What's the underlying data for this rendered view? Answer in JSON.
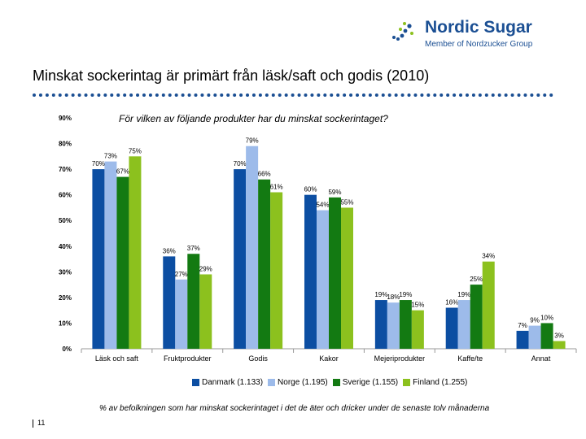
{
  "logo": {
    "name": "Nordic Sugar",
    "subtitle": "Member of Nordzucker Group"
  },
  "title": "Minskat sockerintag är primärt från läsk/saft och godis (2010)",
  "question": "För vilken av följande produkter har du minskat sockerintaget?",
  "footnote": "% av befolkningen som har minskat sockerintaget i det de äter och dricker under de senaste tolv månaderna",
  "page_number": "11",
  "colors": {
    "brand": "#1b4f93",
    "Danmark": "#0c4ea2",
    "Norge": "#9dbbea",
    "Sverige": "#137a12",
    "Finland": "#8cc11e"
  },
  "chart_data": {
    "type": "bar",
    "categories": [
      "Läsk och saft",
      "Fruktprodukter",
      "Godis",
      "Kakor",
      "Mejeriprodukter",
      "Kaffe/te",
      "Annat"
    ],
    "series": [
      {
        "name": "Danmark (1.133)",
        "values": [
          70,
          36,
          70,
          60,
          19,
          16,
          7
        ],
        "labels": [
          "70%",
          "36%",
          "70%",
          "60%",
          "19%",
          "16%",
          "7%"
        ]
      },
      {
        "name": "Norge (1.195)",
        "values": [
          73,
          27,
          79,
          54,
          18,
          19,
          9
        ],
        "labels": [
          "73%",
          "27%",
          "79%",
          "54%",
          "18%",
          "19%",
          "9%"
        ]
      },
      {
        "name": "Sverige (1.155)",
        "values": [
          67,
          37,
          66,
          59,
          19,
          25,
          10
        ],
        "labels": [
          "67%",
          "37%",
          "66%",
          "59%",
          "19%",
          "25%",
          "10%"
        ]
      },
      {
        "name": "Finland (1.255)",
        "values": [
          75,
          29,
          61,
          55,
          15,
          34,
          3
        ],
        "labels": [
          "75%",
          "29%",
          "61%",
          "55%",
          "15%",
          "34%",
          "3%"
        ]
      }
    ],
    "ylim": [
      0,
      90
    ],
    "yticks": [
      "0%",
      "10%",
      "20%",
      "30%",
      "40%",
      "50%",
      "60%",
      "70%",
      "80%",
      "90%"
    ],
    "xlabel": "",
    "ylabel": "",
    "grid": false,
    "legend": "bottom"
  }
}
